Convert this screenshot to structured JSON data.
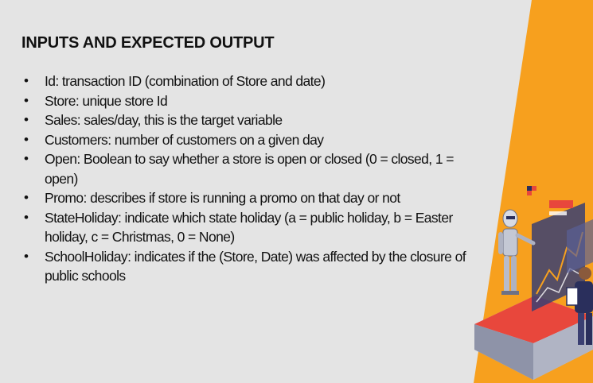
{
  "slide": {
    "title": "INPUTS AND EXPECTED OUTPUT",
    "bullets": [
      "Id: transaction ID (combination of Store and date)",
      "Store: unique store Id",
      "Sales: sales/day, this is the target variable",
      "Customers: number of customers on a given day",
      "Open: Boolean to say whether a store is open or closed (0 = closed, 1 = open)",
      "Promo: describes if store is running a promo on that day or not",
      "StateHoliday: indicate which state holiday (a = public holiday, b = Easter holiday, c = Christmas, 0 = None)",
      "SchoolHoliday: indicates if the (Store, Date) was affected by the closure of public schools"
    ],
    "bullet_glyph": "•"
  },
  "colors": {
    "background": "#e4e4e4",
    "accent_orange": "#f7a01e",
    "text": "#111111",
    "accent_red": "#e8473c",
    "accent_navy": "#2a2f5c"
  },
  "illustration": {
    "icons": [
      "robot-icon",
      "person-with-tablet-icon",
      "chart-dashboard-icon"
    ]
  }
}
